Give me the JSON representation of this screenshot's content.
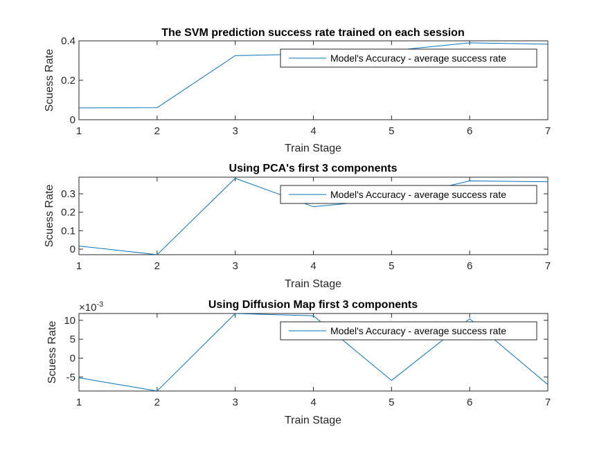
{
  "chart_data": [
    {
      "type": "line",
      "title": "The SVM prediction success rate trained on each session",
      "xlabel": "Train Stage",
      "ylabel": "Scuess Rate",
      "x": [
        1,
        2,
        3,
        4,
        5,
        6,
        7
      ],
      "series": [
        {
          "name": "Model's Accuracy - average success rate",
          "color": "#0072BD",
          "values": [
            0.06,
            0.061,
            0.325,
            0.333,
            0.35,
            0.39,
            0.383
          ]
        }
      ],
      "xlim": [
        1,
        7
      ],
      "ylim": [
        0,
        0.4
      ],
      "xticks": [
        1,
        2,
        3,
        4,
        5,
        6,
        7
      ],
      "yticks": [
        0,
        0.2,
        0.4
      ],
      "ytick_labels": [
        "0",
        "0.2",
        "0.4"
      ],
      "legend": "top-right",
      "grid": false
    },
    {
      "type": "line",
      "title": "Using PCA's first 3 components",
      "xlabel": "Train Stage",
      "ylabel": "Scuess Rate",
      "x": [
        1,
        2,
        3,
        4,
        5,
        6,
        7
      ],
      "series": [
        {
          "name": "Model's Accuracy - average success rate",
          "color": "#0072BD",
          "values": [
            0.017,
            -0.03,
            0.384,
            0.23,
            0.27,
            0.37,
            0.365
          ]
        }
      ],
      "xlim": [
        1,
        7
      ],
      "ylim": [
        -0.03,
        0.39
      ],
      "xticks": [
        1,
        2,
        3,
        4,
        5,
        6,
        7
      ],
      "yticks": [
        0,
        0.1,
        0.2,
        0.3
      ],
      "ytick_labels": [
        "0",
        "0.1",
        "0.2",
        "0.3"
      ],
      "legend": "top-right",
      "grid": false
    },
    {
      "type": "line",
      "title": "Using Diffusion Map first 3 components",
      "xlabel": "Train Stage",
      "ylabel": "Scuess Rate",
      "y_exponent": "×10",
      "y_exponent_power": "-3",
      "x": [
        1,
        2,
        3,
        4,
        5,
        6,
        7
      ],
      "series": [
        {
          "name": "Model's Accuracy - average success rate",
          "color": "#0072BD",
          "values": [
            -5.2,
            -8.7,
            11.8,
            11.2,
            -5.9,
            10.4,
            -7.0
          ]
        }
      ],
      "xlim": [
        1,
        7
      ],
      "ylim": [
        -8.7,
        11.8
      ],
      "xticks": [
        1,
        2,
        3,
        4,
        5,
        6,
        7
      ],
      "yticks": [
        -5,
        0,
        5,
        10
      ],
      "ytick_labels": [
        "-5",
        "0",
        "5",
        "10"
      ],
      "legend": "top-right",
      "grid": false
    }
  ]
}
